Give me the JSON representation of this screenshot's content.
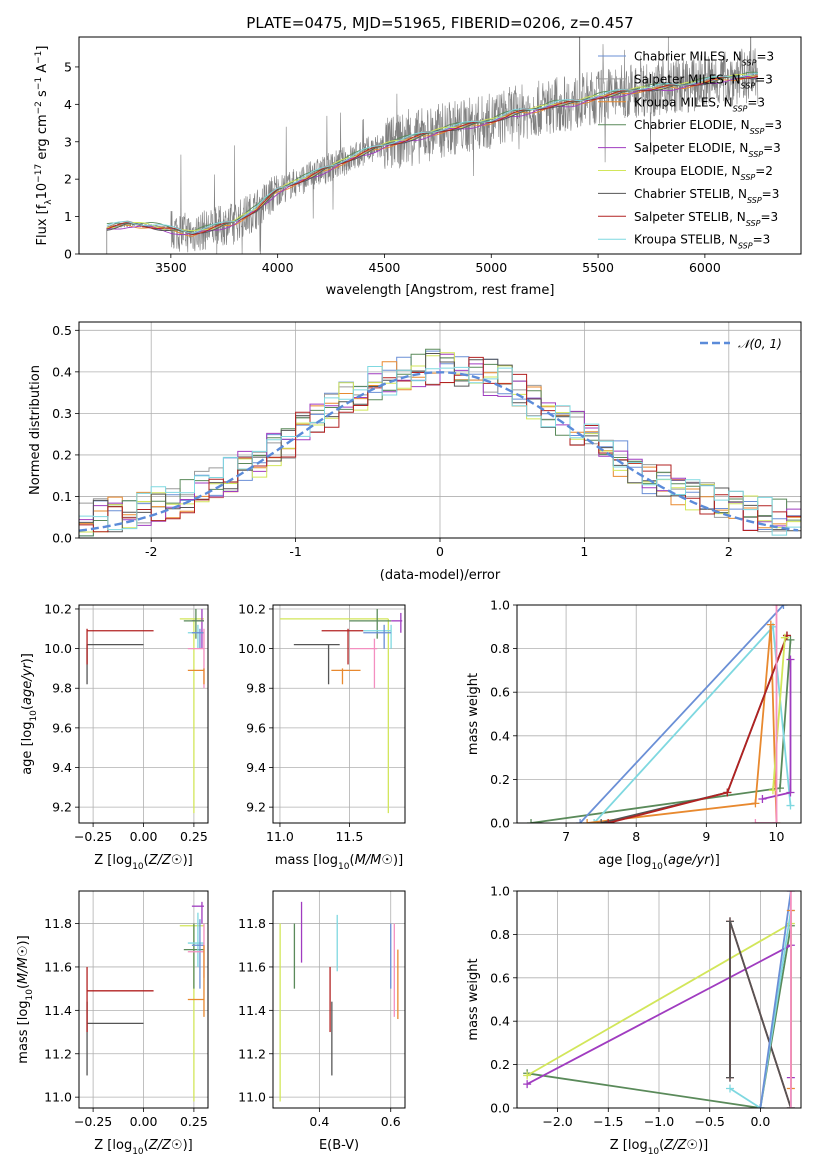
{
  "title": "PLATE=0475, MJD=51965, FIBERID=0206, z=0.457",
  "colors": {
    "chabrier_miles": "#6a8fd6",
    "salpeter_miles": "#9b9b9b",
    "kroupa_miles": "#e8892f",
    "chabrier_elodie": "#5a8a5a",
    "salpeter_elodie": "#a03cc0",
    "kroupa_elodie": "#d2e65a",
    "chabrier_stelib": "#555555",
    "salpeter_stelib": "#b22222",
    "kroupa_stelib": "#7fd8e0",
    "pink": "#f48fc0",
    "data": "#808080"
  },
  "chart_data": [
    {
      "id": "spectrum",
      "type": "line",
      "xlabel": "wavelength [Angstrom, rest frame]",
      "ylabel": "Flux [f_λ10^-17 erg cm^-2 s^-1 A^-1]",
      "ylabel_parts": {
        "a": "Flux [f",
        "b": "λ",
        "c": "10",
        "d": "−17",
        "e": " erg cm",
        "f": "−2",
        "g": " s",
        "h": "−1",
        "i": " A",
        "j": "−1",
        "k": "]"
      },
      "xlim": [
        3070,
        6450
      ],
      "ylim": [
        0,
        5.8
      ],
      "xticks": [
        3500,
        4000,
        4500,
        5000,
        5500,
        6000
      ],
      "yticks": [
        0,
        1,
        2,
        3,
        4,
        5
      ],
      "grid": false,
      "legend_placement": "upper-right",
      "legend": [
        {
          "model": "Chabrier MILES",
          "nssp": "3",
          "color": "#6a8fd6"
        },
        {
          "model": "Salpeter MILES",
          "nssp": "3",
          "color": "#9b9b9b"
        },
        {
          "model": "Kroupa MILES",
          "nssp": "3",
          "color": "#e8892f"
        },
        {
          "model": "Chabrier ELODIE",
          "nssp": "3",
          "color": "#5a8a5a"
        },
        {
          "model": "Salpeter ELODIE",
          "nssp": "3",
          "color": "#a03cc0"
        },
        {
          "model": "Kroupa ELODIE",
          "nssp": "2",
          "color": "#d2e65a"
        },
        {
          "model": "Chabrier STELIB",
          "nssp": "3",
          "color": "#555555"
        },
        {
          "model": "Salpeter STELIB",
          "nssp": "3",
          "color": "#b22222"
        },
        {
          "model": "Kroupa STELIB",
          "nssp": "3",
          "color": "#7fd8e0"
        }
      ],
      "legend_sub": "SSP",
      "legend_prefix": "N",
      "model_curve": {
        "x": [
          3200,
          3300,
          3400,
          3500,
          3600,
          3700,
          3800,
          3900,
          4000,
          4100,
          4200,
          4300,
          4400,
          4500,
          4600,
          4700,
          4800,
          4900,
          5000,
          5100,
          5200,
          5300,
          5400,
          5500,
          5600,
          5700,
          5800,
          5900,
          6000,
          6100,
          6200
        ],
        "y": [
          0.7,
          0.8,
          0.75,
          0.65,
          0.55,
          0.7,
          0.85,
          1.2,
          1.7,
          1.95,
          2.2,
          2.45,
          2.7,
          2.9,
          3.05,
          3.2,
          3.35,
          3.45,
          3.55,
          3.75,
          3.85,
          4.0,
          4.05,
          4.2,
          4.3,
          4.4,
          4.45,
          4.5,
          4.6,
          4.7,
          4.75
        ]
      },
      "data_start": 3200,
      "data_end": 6250
    },
    {
      "id": "residuals",
      "type": "histogram",
      "xlabel": "(data-model)/error",
      "ylabel": "Normed distribution",
      "xlim": [
        -2.5,
        2.5
      ],
      "ylim": [
        0,
        0.52
      ],
      "xticks": [
        -2,
        -1,
        0,
        1,
        2
      ],
      "yticks": [
        0.0,
        0.1,
        0.2,
        0.3,
        0.4,
        0.5
      ],
      "grid": true,
      "legend_placement": "upper-right",
      "gaussian_label": "𝒩(0, 1)",
      "gaussian_color": "#5b8bd9",
      "bin_width": 0.1
    },
    {
      "id": "age_vs_Z",
      "type": "errorbar",
      "xlabel": "Z [log10(Z/Z☉)]",
      "ylabel": "age  [log10(age/yr)]",
      "xlim": [
        -0.32,
        0.32
      ],
      "ylim": [
        9.12,
        10.22
      ],
      "xticks": [
        -0.25,
        0.0,
        0.25
      ],
      "xticklabels": [
        "−0.25",
        "0.00",
        "0.25"
      ],
      "yticks": [
        9.2,
        9.4,
        9.6,
        9.8,
        10.0,
        10.2
      ],
      "grid": true,
      "points": [
        {
          "x": -0.28,
          "y": 10.02,
          "xlo": -0.28,
          "xhi": 0.0,
          "ylo": 9.82,
          "yhi": 10.02,
          "c": "#555555"
        },
        {
          "x": -0.28,
          "y": 10.09,
          "xlo": -0.28,
          "xhi": 0.05,
          "ylo": 9.92,
          "yhi": 10.1,
          "c": "#b22222"
        },
        {
          "x": 0.25,
          "y": 10.15,
          "xlo": 0.18,
          "xhi": 0.3,
          "ylo": 9.17,
          "yhi": 10.15,
          "c": "#d2e65a"
        },
        {
          "x": 0.29,
          "y": 10.14,
          "xlo": 0.24,
          "xhi": 0.3,
          "ylo": 10.0,
          "yhi": 10.2,
          "c": "#a03cc0"
        },
        {
          "x": 0.26,
          "y": 10.14,
          "xlo": 0.2,
          "xhi": 0.3,
          "ylo": 10.05,
          "yhi": 10.2,
          "c": "#5a8a5a"
        },
        {
          "x": 0.27,
          "y": 10.08,
          "xlo": 0.22,
          "xhi": 0.3,
          "ylo": 10.0,
          "yhi": 10.12,
          "c": "#7fd8e0"
        },
        {
          "x": 0.28,
          "y": 10.08,
          "xlo": 0.24,
          "xhi": 0.3,
          "ylo": 10.0,
          "yhi": 10.1,
          "c": "#6a8fd6"
        },
        {
          "x": 0.3,
          "y": 10.0,
          "xlo": 0.22,
          "xhi": 0.3,
          "ylo": 9.8,
          "yhi": 10.1,
          "c": "#f48fc0"
        },
        {
          "x": 0.3,
          "y": 9.89,
          "xlo": 0.22,
          "xhi": 0.3,
          "ylo": 9.82,
          "yhi": 9.9,
          "c": "#e8892f"
        }
      ]
    },
    {
      "id": "age_vs_mass",
      "type": "errorbar",
      "xlabel": "mass [log10(M/M☉)]",
      "xlim": [
        10.95,
        11.9
      ],
      "ylim": [
        9.12,
        10.22
      ],
      "xticks": [
        11.0,
        11.5
      ],
      "xticklabels": [
        "11.0",
        "11.5"
      ],
      "yticks": [
        9.2,
        9.4,
        9.6,
        9.8,
        10.0,
        10.2
      ],
      "grid": true,
      "points": [
        {
          "x": 11.35,
          "y": 10.02,
          "xlo": 11.1,
          "xhi": 11.43,
          "ylo": 9.82,
          "yhi": 10.02,
          "c": "#555555"
        },
        {
          "x": 11.49,
          "y": 10.09,
          "xlo": 11.3,
          "xhi": 11.6,
          "ylo": 9.92,
          "yhi": 10.1,
          "c": "#b22222"
        },
        {
          "x": 11.78,
          "y": 10.15,
          "xlo": 11.0,
          "xhi": 11.78,
          "ylo": 9.17,
          "yhi": 10.15,
          "c": "#d2e65a"
        },
        {
          "x": 11.87,
          "y": 10.14,
          "xlo": 11.8,
          "xhi": 11.88,
          "ylo": 10.08,
          "yhi": 10.18,
          "c": "#a03cc0"
        },
        {
          "x": 11.7,
          "y": 10.14,
          "xlo": 11.5,
          "xhi": 11.8,
          "ylo": 10.05,
          "yhi": 10.2,
          "c": "#5a8a5a"
        },
        {
          "x": 11.8,
          "y": 10.09,
          "xlo": 11.6,
          "xhi": 11.8,
          "ylo": 10.0,
          "yhi": 10.12,
          "c": "#7fd8e0"
        },
        {
          "x": 11.75,
          "y": 10.08,
          "xlo": 11.6,
          "xhi": 11.8,
          "ylo": 10.0,
          "yhi": 10.12,
          "c": "#6a8fd6"
        },
        {
          "x": 11.68,
          "y": 10.0,
          "xlo": 11.5,
          "xhi": 11.7,
          "ylo": 9.8,
          "yhi": 10.05,
          "c": "#f48fc0"
        },
        {
          "x": 11.45,
          "y": 9.89,
          "xlo": 11.37,
          "xhi": 11.58,
          "ylo": 9.82,
          "yhi": 9.9,
          "c": "#e8892f"
        }
      ]
    },
    {
      "id": "weight_vs_age",
      "type": "line",
      "xlabel": "age  [log10(age/yr)]",
      "ylabel": "mass weight",
      "xlim": [
        6.3,
        10.35
      ],
      "ylim": [
        0,
        1.0
      ],
      "xticks": [
        7,
        8,
        9,
        10
      ],
      "yticks": [
        0.0,
        0.2,
        0.4,
        0.6,
        0.8,
        1.0
      ],
      "grid": true,
      "series": [
        {
          "c": "#5a8a5a",
          "x": [
            6.5,
            10.05,
            10.2
          ],
          "y": [
            0.0,
            0.16,
            0.84
          ]
        },
        {
          "c": "#6a8fd6",
          "x": [
            7.2,
            10.1
          ],
          "y": [
            0.0,
            1.0
          ]
        },
        {
          "c": "#7fd8e0",
          "x": [
            7.4,
            9.95,
            10.2
          ],
          "y": [
            0.0,
            0.9,
            0.08
          ]
        },
        {
          "c": "#e8892f",
          "x": [
            7.3,
            9.7,
            9.92,
            10.0
          ],
          "y": [
            0.0,
            0.09,
            0.91,
            0.0
          ]
        },
        {
          "c": "#555555",
          "x": [
            7.5,
            9.3,
            10.15
          ],
          "y": [
            0.0,
            0.14,
            0.86
          ]
        },
        {
          "c": "#b22222",
          "x": [
            7.6,
            9.3,
            10.15
          ],
          "y": [
            0.0,
            0.14,
            0.86
          ]
        },
        {
          "c": "#a03cc0",
          "x": [
            9.8,
            10.2,
            10.2
          ],
          "y": [
            0.11,
            0.14,
            0.75
          ]
        },
        {
          "c": "#d2e65a",
          "x": [
            9.95,
            10.12
          ],
          "y": [
            0.15,
            0.85
          ]
        },
        {
          "c": "#f48fc0",
          "x": [
            9.7,
            10.0,
            10.0
          ],
          "y": [
            0.0,
            0.0,
            1.0
          ]
        }
      ]
    },
    {
      "id": "mass_vs_Z",
      "type": "errorbar",
      "xlabel": "Z [log10(Z/Z☉)]",
      "ylabel": "mass [log10(M/M☉)]",
      "xlim": [
        -0.32,
        0.32
      ],
      "ylim": [
        10.95,
        11.95
      ],
      "xticks": [
        -0.25,
        0.0,
        0.25
      ],
      "xticklabels": [
        "−0.25",
        "0.00",
        "0.25"
      ],
      "yticks": [
        11.0,
        11.2,
        11.4,
        11.6,
        11.8
      ],
      "grid": true,
      "points": [
        {
          "x": -0.28,
          "y": 11.34,
          "xlo": -0.28,
          "xhi": 0.0,
          "ylo": 11.1,
          "yhi": 11.44,
          "c": "#555555"
        },
        {
          "x": -0.28,
          "y": 11.49,
          "xlo": -0.28,
          "xhi": 0.05,
          "ylo": 11.3,
          "yhi": 11.6,
          "c": "#b22222"
        },
        {
          "x": 0.25,
          "y": 11.79,
          "xlo": 0.18,
          "xhi": 0.3,
          "ylo": 10.98,
          "yhi": 11.8,
          "c": "#d2e65a"
        },
        {
          "x": 0.29,
          "y": 11.88,
          "xlo": 0.24,
          "xhi": 0.3,
          "ylo": 11.8,
          "yhi": 11.9,
          "c": "#a03cc0"
        },
        {
          "x": 0.25,
          "y": 11.68,
          "xlo": 0.2,
          "xhi": 0.3,
          "ylo": 11.5,
          "yhi": 11.8,
          "c": "#5a8a5a"
        },
        {
          "x": 0.27,
          "y": 11.71,
          "xlo": 0.22,
          "xhi": 0.3,
          "ylo": 11.6,
          "yhi": 11.85,
          "c": "#7fd8e0"
        },
        {
          "x": 0.28,
          "y": 11.7,
          "xlo": 0.24,
          "xhi": 0.3,
          "ylo": 11.5,
          "yhi": 11.82,
          "c": "#6a8fd6"
        },
        {
          "x": 0.3,
          "y": 11.67,
          "xlo": 0.22,
          "xhi": 0.3,
          "ylo": 11.55,
          "yhi": 11.8,
          "c": "#f48fc0"
        },
        {
          "x": 0.3,
          "y": 11.45,
          "xlo": 0.22,
          "xhi": 0.3,
          "ylo": 11.37,
          "yhi": 11.7,
          "c": "#e8892f"
        }
      ]
    },
    {
      "id": "mass_vs_ebv",
      "type": "errorbar",
      "xlabel": "E(B-V)",
      "xlim": [
        0.27,
        0.64
      ],
      "ylim": [
        10.95,
        11.95
      ],
      "xticks": [
        0.4,
        0.6
      ],
      "xticklabels": [
        "0.4",
        "0.6"
      ],
      "yticks": [
        11.0,
        11.2,
        11.4,
        11.6,
        11.8
      ],
      "grid": true,
      "points": [
        {
          "x": 0.29,
          "y": 11.4,
          "xlo": 0.29,
          "xhi": 0.29,
          "ylo": 10.98,
          "yhi": 11.8,
          "c": "#d2e65a"
        },
        {
          "x": 0.33,
          "y": 11.65,
          "xlo": 0.33,
          "xhi": 0.33,
          "ylo": 11.5,
          "yhi": 11.8,
          "c": "#5a8a5a"
        },
        {
          "x": 0.35,
          "y": 11.76,
          "xlo": 0.35,
          "xhi": 0.35,
          "ylo": 11.62,
          "yhi": 11.9,
          "c": "#a03cc0"
        },
        {
          "x": 0.43,
          "y": 11.45,
          "xlo": 0.43,
          "xhi": 0.43,
          "ylo": 11.3,
          "yhi": 11.6,
          "c": "#b22222"
        },
        {
          "x": 0.435,
          "y": 11.27,
          "xlo": 0.435,
          "xhi": 0.435,
          "ylo": 11.1,
          "yhi": 11.44,
          "c": "#555555"
        },
        {
          "x": 0.45,
          "y": 11.71,
          "xlo": 0.45,
          "xhi": 0.45,
          "ylo": 11.58,
          "yhi": 11.84,
          "c": "#7fd8e0"
        },
        {
          "x": 0.6,
          "y": 11.65,
          "xlo": 0.6,
          "xhi": 0.6,
          "ylo": 11.5,
          "yhi": 11.8,
          "c": "#6a8fd6"
        },
        {
          "x": 0.61,
          "y": 11.55,
          "xlo": 0.61,
          "xhi": 0.61,
          "ylo": 11.37,
          "yhi": 11.8,
          "c": "#f48fc0"
        },
        {
          "x": 0.62,
          "y": 11.52,
          "xlo": 0.62,
          "xhi": 0.62,
          "ylo": 11.36,
          "yhi": 11.68,
          "c": "#e8892f"
        }
      ]
    },
    {
      "id": "weight_vs_Z",
      "type": "line",
      "xlabel": "Z [log10(Z/Z☉)]",
      "ylabel": "mass weight",
      "xlim": [
        -2.4,
        0.4
      ],
      "ylim": [
        0,
        1.0
      ],
      "xticks": [
        -2.0,
        -1.5,
        -1.0,
        -0.5,
        0.0
      ],
      "xticklabels": [
        "−2.0",
        "−1.5",
        "−1.0",
        "−0.5",
        "0.0"
      ],
      "yticks": [
        0.0,
        0.2,
        0.4,
        0.6,
        0.8,
        1.0
      ],
      "grid": true,
      "series": [
        {
          "c": "#5a8a5a",
          "x": [
            -2.3,
            0.0,
            0.3
          ],
          "y": [
            0.16,
            0.0,
            0.84
          ]
        },
        {
          "c": "#d2e65a",
          "x": [
            -2.3,
            0.3
          ],
          "y": [
            0.15,
            0.85
          ]
        },
        {
          "c": "#a03cc0",
          "x": [
            -2.3,
            0.3,
            0.3
          ],
          "y": [
            0.11,
            0.75,
            0.14
          ]
        },
        {
          "c": "#b22222",
          "x": [
            -0.3,
            -0.3,
            0.3
          ],
          "y": [
            0.14,
            0.86,
            0.0
          ]
        },
        {
          "c": "#555555",
          "x": [
            -0.3,
            -0.3,
            0.3
          ],
          "y": [
            0.14,
            0.86,
            0.0
          ]
        },
        {
          "c": "#7fd8e0",
          "x": [
            -0.3,
            0.0,
            0.3,
            0.3
          ],
          "y": [
            0.09,
            0.0,
            0.91,
            0.0
          ]
        },
        {
          "c": "#6a8fd6",
          "x": [
            0.0,
            0.3
          ],
          "y": [
            0.0,
            1.0
          ]
        },
        {
          "c": "#e8892f",
          "x": [
            0.3,
            0.3
          ],
          "y": [
            0.09,
            0.91
          ]
        },
        {
          "c": "#f48fc0",
          "x": [
            0.3,
            0.3
          ],
          "y": [
            0.0,
            1.0
          ]
        }
      ]
    }
  ]
}
